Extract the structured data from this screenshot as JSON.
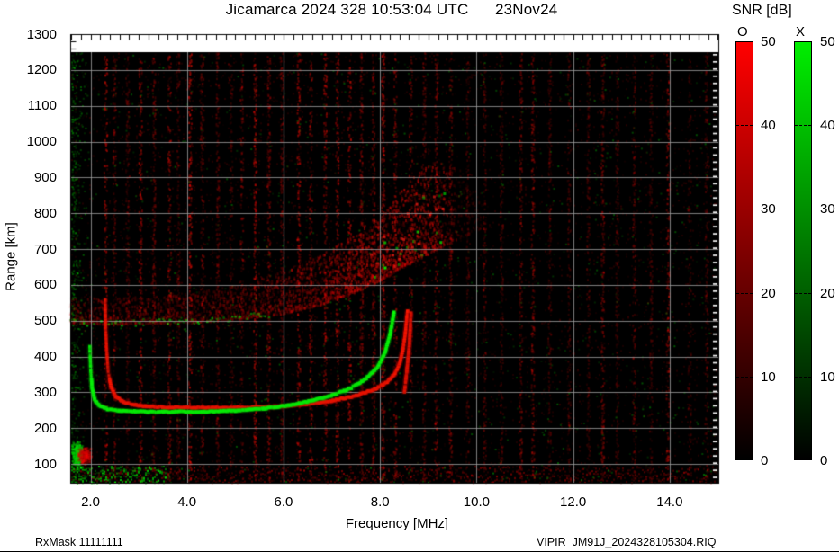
{
  "page": {
    "title": "Jicamarca 2024 328 10:53:04 UTC      23Nov24",
    "footer_left": "RxMask 11111111",
    "footer_right": "VIPIR  JM91J_2024328105304.RIQ"
  },
  "chart_data": {
    "type": "heatmap",
    "subtype": "ionogram",
    "title": "Jicamarca 2024 328 10:53:04 UTC      23Nov24",
    "station": "Jicamarca",
    "timestamp_shown": "2024 328 10:53:04 UTC 23Nov24",
    "xlabel": "Frequency [MHz]",
    "ylabel": "Range [km]",
    "xlim": [
      1.58,
      15.01
    ],
    "ylim_km": [
      47,
      1300
    ],
    "data_top_km": 1250,
    "x_ticks": [
      2.0,
      4.0,
      6.0,
      8.0,
      10.0,
      12.0,
      14.0
    ],
    "y_ticks": [
      100,
      200,
      300,
      400,
      500,
      600,
      700,
      800,
      900,
      1000,
      1100,
      1200,
      1300
    ],
    "grid": true,
    "grid_color": "#9b9b9b",
    "background_color": "#000000",
    "colorbar": {
      "title": "SNR [dB]",
      "min": 0,
      "max": 50,
      "ticks": [
        50,
        40,
        30,
        20,
        10,
        0
      ],
      "o_label": "O",
      "x_label": "X",
      "o_color": "#ff0000",
      "x_color": "#00ee00"
    },
    "x_trace_km_vs_mhz": [
      [
        1.98,
        430
      ],
      [
        2.0,
        360
      ],
      [
        2.03,
        310
      ],
      [
        2.08,
        280
      ],
      [
        2.18,
        263
      ],
      [
        2.35,
        254
      ],
      [
        2.6,
        249
      ],
      [
        3.2,
        246
      ],
      [
        4.2,
        246
      ],
      [
        5.0,
        249
      ],
      [
        5.6,
        255
      ],
      [
        6.1,
        264
      ],
      [
        6.6,
        277
      ],
      [
        7.0,
        292
      ],
      [
        7.4,
        313
      ],
      [
        7.7,
        338
      ],
      [
        7.95,
        372
      ],
      [
        8.1,
        412
      ],
      [
        8.2,
        462
      ],
      [
        8.26,
        505
      ],
      [
        8.29,
        525
      ]
    ],
    "o_trace_km_vs_mhz": [
      [
        2.3,
        560
      ],
      [
        2.31,
        480
      ],
      [
        2.33,
        420
      ],
      [
        2.36,
        360
      ],
      [
        2.42,
        315
      ],
      [
        2.52,
        288
      ],
      [
        2.7,
        272
      ],
      [
        3.0,
        263
      ],
      [
        3.6,
        258
      ],
      [
        4.6,
        257
      ],
      [
        5.4,
        258
      ],
      [
        6.0,
        262
      ],
      [
        6.5,
        268
      ],
      [
        7.0,
        277
      ],
      [
        7.5,
        291
      ],
      [
        7.9,
        310
      ],
      [
        8.15,
        330
      ],
      [
        8.3,
        352
      ],
      [
        8.4,
        380
      ],
      [
        8.47,
        420
      ],
      [
        8.52,
        465
      ],
      [
        8.55,
        505
      ],
      [
        8.57,
        530
      ]
    ],
    "o_trace_echo_km_vs_mhz": [
      [
        8.5,
        300
      ],
      [
        8.55,
        360
      ],
      [
        8.6,
        430
      ],
      [
        8.63,
        500
      ],
      [
        8.64,
        525
      ]
    ],
    "critical_frequency_o_mhz": 8.55,
    "critical_frequency_x_mhz": 8.29,
    "f_layer_min_virtual_height_km": 246,
    "spread_f_band": {
      "bottom_km_vs_mhz": [
        [
          1.58,
          495
        ],
        [
          2.5,
          492
        ],
        [
          4.0,
          497
        ],
        [
          5.0,
          505
        ],
        [
          6.0,
          522
        ],
        [
          6.8,
          548
        ],
        [
          7.5,
          585
        ],
        [
          8.0,
          615
        ],
        [
          8.5,
          655
        ],
        [
          9.0,
          690
        ],
        [
          9.6,
          730
        ],
        [
          10.1,
          760
        ]
      ],
      "top_km_vs_mhz": [
        [
          1.58,
          570
        ],
        [
          2.5,
          565
        ],
        [
          4.0,
          580
        ],
        [
          5.0,
          600
        ],
        [
          6.0,
          640
        ],
        [
          6.8,
          690
        ],
        [
          7.5,
          750
        ],
        [
          8.0,
          800
        ],
        [
          8.5,
          880
        ],
        [
          9.0,
          950
        ],
        [
          9.6,
          930
        ],
        [
          10.1,
          860
        ]
      ],
      "density_vs_mhz": [
        [
          1.58,
          0.5
        ],
        [
          3.0,
          0.45
        ],
        [
          5.0,
          0.5
        ],
        [
          6.0,
          0.6
        ],
        [
          7.0,
          0.78
        ],
        [
          7.8,
          0.95
        ],
        [
          8.6,
          1.0
        ],
        [
          9.2,
          0.8
        ],
        [
          9.6,
          0.4
        ],
        [
          10.1,
          0.2
        ]
      ]
    },
    "e_region_blobs": [
      {
        "mode": "X",
        "color": "green",
        "f_mhz": [
          1.58,
          1.84
        ],
        "km": [
          92,
          168
        ],
        "n": 300
      },
      {
        "mode": "O",
        "color": "red",
        "f_mhz": [
          1.7,
          2.02
        ],
        "km": [
          100,
          152
        ],
        "n": 230
      }
    ],
    "bottom_noise_band_km": [
      48,
      95
    ],
    "rfi_stripes_mhz": [
      [
        2.3,
        0.5
      ],
      [
        2.48,
        0.3
      ],
      [
        2.75,
        0.2
      ],
      [
        3.02,
        0.45
      ],
      [
        3.3,
        0.25
      ],
      [
        3.62,
        0.4
      ],
      [
        3.8,
        0.2
      ],
      [
        4.05,
        0.5
      ],
      [
        4.3,
        0.3
      ],
      [
        4.62,
        0.25
      ],
      [
        4.9,
        0.2
      ],
      [
        5.12,
        0.3
      ],
      [
        5.4,
        0.45
      ],
      [
        5.68,
        0.3
      ],
      [
        5.95,
        0.25
      ],
      [
        6.3,
        0.45
      ],
      [
        6.55,
        0.35
      ],
      [
        6.85,
        0.45
      ],
      [
        7.1,
        0.4
      ],
      [
        7.35,
        0.45
      ],
      [
        7.6,
        0.3
      ],
      [
        7.85,
        0.3
      ],
      [
        8.05,
        0.4
      ],
      [
        8.3,
        0.35
      ],
      [
        8.62,
        0.3
      ],
      [
        8.9,
        0.25
      ],
      [
        9.15,
        0.35
      ],
      [
        9.45,
        0.3
      ],
      [
        9.8,
        0.2
      ],
      [
        10.15,
        0.25
      ],
      [
        10.5,
        0.2
      ],
      [
        10.9,
        0.3
      ],
      [
        11.15,
        0.35
      ],
      [
        11.5,
        0.2
      ],
      [
        11.9,
        0.25
      ],
      [
        12.3,
        0.2
      ],
      [
        12.6,
        0.3
      ],
      [
        12.9,
        0.2
      ],
      [
        13.25,
        0.25
      ],
      [
        13.6,
        0.2
      ],
      [
        13.95,
        0.4
      ],
      [
        14.4,
        0.2
      ],
      [
        14.75,
        0.25
      ]
    ]
  }
}
